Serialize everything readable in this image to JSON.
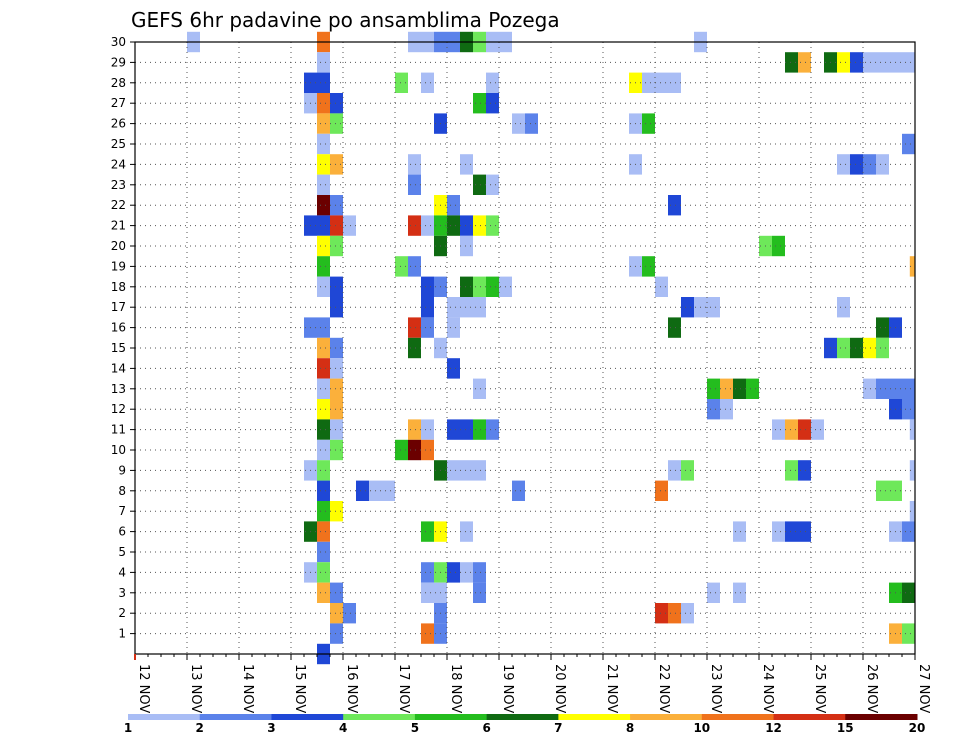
{
  "chart_data": {
    "type": "heatmap",
    "title": "GEFS 6hr padavine po ansamblima Pozega",
    "xlabel": "",
    "ylabel": "",
    "x_ticks": [
      "12 NOV",
      "13 NOV",
      "14 NOV",
      "15 NOV",
      "16 NOV",
      "17 NOV",
      "18 NOV",
      "19 NOV",
      "20 NOV",
      "21 NOV",
      "22 NOV",
      "23 NOV",
      "24 NOV",
      "25 NOV",
      "26 NOV",
      "27 NOV"
    ],
    "y_ticks": [
      1,
      2,
      3,
      4,
      5,
      6,
      7,
      8,
      9,
      10,
      11,
      12,
      13,
      14,
      15,
      16,
      17,
      18,
      19,
      20,
      21,
      22,
      23,
      24,
      25,
      26,
      27,
      28,
      29,
      30
    ],
    "x_range_days": [
      12,
      27
    ],
    "y_range": [
      0,
      30
    ],
    "grid": true,
    "legend_position": "bottom",
    "legend_ticks": [
      "1",
      "2",
      "3",
      "4",
      "5",
      "6",
      "7",
      "8",
      "10",
      "12",
      "15",
      "20"
    ],
    "legend_colors": [
      "#a9bdf5",
      "#5b82ea",
      "#1f47d6",
      "#6ee85a",
      "#24bd1e",
      "#0f6a12",
      "#ffff00",
      "#fbb03b",
      "#f0721c",
      "#d42f14",
      "#6b0000"
    ],
    "cell_value_note": "[day_of_november, member, bin] where bin 0..10 indexes legend_colors",
    "cells": [
      [
        13.0,
        30,
        0
      ],
      [
        15.5,
        30,
        8
      ],
      [
        17.25,
        30,
        0
      ],
      [
        17.5,
        30,
        0
      ],
      [
        17.75,
        30,
        1
      ],
      [
        18.0,
        30,
        1
      ],
      [
        18.25,
        30,
        5
      ],
      [
        18.5,
        30,
        3
      ],
      [
        18.75,
        30,
        0
      ],
      [
        19.0,
        30,
        0
      ],
      [
        22.75,
        30,
        0
      ],
      [
        15.5,
        29,
        0
      ],
      [
        24.5,
        29,
        5
      ],
      [
        24.75,
        29,
        7
      ],
      [
        25.25,
        29,
        5
      ],
      [
        25.5,
        29,
        6
      ],
      [
        25.75,
        29,
        2
      ],
      [
        26.0,
        29,
        0
      ],
      [
        26.25,
        29,
        0
      ],
      [
        26.5,
        29,
        0
      ],
      [
        26.75,
        29,
        0
      ],
      [
        15.25,
        28,
        2
      ],
      [
        15.5,
        28,
        2
      ],
      [
        17.0,
        28,
        3
      ],
      [
        17.5,
        28,
        0
      ],
      [
        18.75,
        28,
        0
      ],
      [
        21.5,
        28,
        6
      ],
      [
        21.75,
        28,
        0
      ],
      [
        22.0,
        28,
        0
      ],
      [
        22.25,
        28,
        0
      ],
      [
        15.25,
        27,
        0
      ],
      [
        15.5,
        27,
        8
      ],
      [
        15.75,
        27,
        2
      ],
      [
        18.5,
        27,
        4
      ],
      [
        18.75,
        27,
        2
      ],
      [
        15.5,
        26,
        7
      ],
      [
        15.75,
        26,
        3
      ],
      [
        17.75,
        26,
        2
      ],
      [
        19.25,
        26,
        0
      ],
      [
        19.5,
        26,
        1
      ],
      [
        21.5,
        26,
        0
      ],
      [
        21.75,
        26,
        4
      ],
      [
        15.5,
        25,
        0
      ],
      [
        26.75,
        25,
        1
      ],
      [
        15.5,
        24,
        6
      ],
      [
        15.75,
        24,
        7
      ],
      [
        17.25,
        24,
        0
      ],
      [
        18.25,
        24,
        0
      ],
      [
        21.5,
        24,
        0
      ],
      [
        25.5,
        24,
        0
      ],
      [
        25.75,
        24,
        2
      ],
      [
        26.0,
        24,
        1
      ],
      [
        26.25,
        24,
        0
      ],
      [
        15.5,
        23,
        0
      ],
      [
        17.25,
        23,
        1
      ],
      [
        18.5,
        23,
        5
      ],
      [
        18.75,
        23,
        0
      ],
      [
        15.5,
        22,
        10
      ],
      [
        15.75,
        22,
        1
      ],
      [
        17.75,
        22,
        6
      ],
      [
        18.0,
        22,
        1
      ],
      [
        22.25,
        22,
        2
      ],
      [
        15.25,
        21,
        2
      ],
      [
        15.5,
        21,
        2
      ],
      [
        15.75,
        21,
        9
      ],
      [
        16.0,
        21,
        0
      ],
      [
        17.25,
        21,
        9
      ],
      [
        17.5,
        21,
        0
      ],
      [
        17.75,
        21,
        4
      ],
      [
        18.0,
        21,
        5
      ],
      [
        18.25,
        21,
        2
      ],
      [
        18.5,
        21,
        6
      ],
      [
        18.75,
        21,
        3
      ],
      [
        15.5,
        20,
        6
      ],
      [
        15.75,
        20,
        3
      ],
      [
        17.75,
        20,
        5
      ],
      [
        18.25,
        20,
        0
      ],
      [
        24.0,
        20,
        3
      ],
      [
        24.25,
        20,
        4
      ],
      [
        15.5,
        19,
        4
      ],
      [
        17.0,
        19,
        3
      ],
      [
        17.25,
        19,
        1
      ],
      [
        21.5,
        19,
        0
      ],
      [
        21.75,
        19,
        4
      ],
      [
        26.9,
        19,
        7
      ],
      [
        15.5,
        18,
        0
      ],
      [
        15.75,
        18,
        2
      ],
      [
        17.5,
        18,
        2
      ],
      [
        17.75,
        18,
        1
      ],
      [
        18.25,
        18,
        5
      ],
      [
        18.5,
        18,
        3
      ],
      [
        18.75,
        18,
        4
      ],
      [
        19.0,
        18,
        0
      ],
      [
        22.0,
        18,
        0
      ],
      [
        15.75,
        17,
        2
      ],
      [
        17.5,
        17,
        2
      ],
      [
        18.0,
        17,
        0
      ],
      [
        18.25,
        17,
        0
      ],
      [
        18.5,
        17,
        0
      ],
      [
        22.5,
        17,
        2
      ],
      [
        22.75,
        17,
        0
      ],
      [
        23.0,
        17,
        0
      ],
      [
        25.5,
        17,
        0
      ],
      [
        15.25,
        16,
        1
      ],
      [
        15.5,
        16,
        1
      ],
      [
        17.25,
        16,
        9
      ],
      [
        17.5,
        16,
        1
      ],
      [
        18.0,
        16,
        0
      ],
      [
        22.25,
        16,
        5
      ],
      [
        26.25,
        16,
        5
      ],
      [
        26.5,
        16,
        2
      ],
      [
        15.5,
        15,
        7
      ],
      [
        15.75,
        15,
        1
      ],
      [
        17.25,
        15,
        5
      ],
      [
        17.75,
        15,
        0
      ],
      [
        25.25,
        15,
        2
      ],
      [
        25.5,
        15,
        3
      ],
      [
        25.75,
        15,
        5
      ],
      [
        26.0,
        15,
        6
      ],
      [
        26.25,
        15,
        3
      ],
      [
        15.5,
        14,
        9
      ],
      [
        15.75,
        14,
        0
      ],
      [
        18.0,
        14,
        2
      ],
      [
        15.5,
        13,
        0
      ],
      [
        15.75,
        13,
        7
      ],
      [
        18.5,
        13,
        0
      ],
      [
        23.0,
        13,
        4
      ],
      [
        23.25,
        13,
        7
      ],
      [
        23.5,
        13,
        5
      ],
      [
        23.75,
        13,
        4
      ],
      [
        26.0,
        13,
        0
      ],
      [
        26.25,
        13,
        1
      ],
      [
        26.5,
        13,
        1
      ],
      [
        26.75,
        13,
        1
      ],
      [
        15.5,
        12,
        6
      ],
      [
        15.75,
        12,
        7
      ],
      [
        23.0,
        12,
        1
      ],
      [
        23.25,
        12,
        0
      ],
      [
        26.5,
        12,
        2
      ],
      [
        26.75,
        12,
        1
      ],
      [
        15.5,
        11,
        5
      ],
      [
        15.75,
        11,
        0
      ],
      [
        17.25,
        11,
        7
      ],
      [
        17.5,
        11,
        0
      ],
      [
        18.0,
        11,
        2
      ],
      [
        18.25,
        11,
        2
      ],
      [
        18.5,
        11,
        4
      ],
      [
        18.75,
        11,
        1
      ],
      [
        24.25,
        11,
        0
      ],
      [
        24.5,
        11,
        7
      ],
      [
        24.75,
        11,
        9
      ],
      [
        25.0,
        11,
        0
      ],
      [
        26.9,
        11,
        0
      ],
      [
        15.5,
        10,
        0
      ],
      [
        15.75,
        10,
        3
      ],
      [
        17.0,
        10,
        4
      ],
      [
        17.25,
        10,
        10
      ],
      [
        17.5,
        10,
        8
      ],
      [
        15.25,
        9,
        0
      ],
      [
        15.5,
        9,
        3
      ],
      [
        17.75,
        9,
        5
      ],
      [
        18.0,
        9,
        0
      ],
      [
        18.25,
        9,
        0
      ],
      [
        18.5,
        9,
        0
      ],
      [
        22.25,
        9,
        0
      ],
      [
        22.5,
        9,
        3
      ],
      [
        24.5,
        9,
        3
      ],
      [
        24.75,
        9,
        2
      ],
      [
        26.9,
        9,
        0
      ],
      [
        15.5,
        8,
        2
      ],
      [
        16.25,
        8,
        2
      ],
      [
        16.5,
        8,
        0
      ],
      [
        16.75,
        8,
        0
      ],
      [
        19.25,
        8,
        1
      ],
      [
        22.0,
        8,
        8
      ],
      [
        26.25,
        8,
        3
      ],
      [
        26.5,
        8,
        3
      ],
      [
        15.5,
        7,
        4
      ],
      [
        15.75,
        7,
        6
      ],
      [
        26.9,
        7,
        0
      ],
      [
        15.25,
        6,
        5
      ],
      [
        15.5,
        6,
        8
      ],
      [
        17.5,
        6,
        4
      ],
      [
        17.75,
        6,
        6
      ],
      [
        18.25,
        6,
        0
      ],
      [
        23.5,
        6,
        0
      ],
      [
        24.25,
        6,
        0
      ],
      [
        24.5,
        6,
        2
      ],
      [
        24.75,
        6,
        2
      ],
      [
        26.5,
        6,
        0
      ],
      [
        26.75,
        6,
        1
      ],
      [
        15.5,
        5,
        1
      ],
      [
        15.25,
        4,
        0
      ],
      [
        15.5,
        4,
        3
      ],
      [
        17.5,
        4,
        1
      ],
      [
        17.75,
        4,
        3
      ],
      [
        18.0,
        4,
        2
      ],
      [
        18.25,
        4,
        0
      ],
      [
        18.5,
        4,
        1
      ],
      [
        15.5,
        3,
        7
      ],
      [
        15.75,
        3,
        1
      ],
      [
        17.5,
        3,
        0
      ],
      [
        17.75,
        3,
        0
      ],
      [
        18.5,
        3,
        1
      ],
      [
        23.0,
        3,
        0
      ],
      [
        23.5,
        3,
        0
      ],
      [
        26.5,
        3,
        4
      ],
      [
        26.75,
        3,
        5
      ],
      [
        15.75,
        2,
        7
      ],
      [
        16.0,
        2,
        1
      ],
      [
        17.75,
        2,
        1
      ],
      [
        22.0,
        2,
        9
      ],
      [
        22.25,
        2,
        8
      ],
      [
        22.5,
        2,
        0
      ],
      [
        15.75,
        1,
        1
      ],
      [
        17.5,
        1,
        8
      ],
      [
        17.75,
        1,
        1
      ],
      [
        26.5,
        1,
        7
      ],
      [
        26.75,
        1,
        3
      ],
      [
        15.5,
        0,
        2
      ]
    ]
  }
}
